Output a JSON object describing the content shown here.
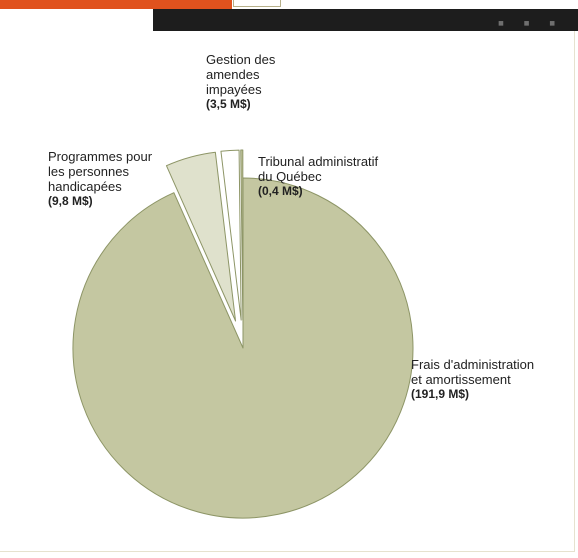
{
  "colors": {
    "accent": "#e0521e",
    "banner": "#1d1d1d",
    "slice_main": "#c4c7a1",
    "slice_light": "#dfe1cc",
    "slice_white": "#ffffff",
    "slice_stroke": "#8d9566"
  },
  "header": {
    "dots": "■ ■ ■"
  },
  "chart_data": {
    "type": "pie",
    "title": "",
    "slices": [
      {
        "name": "Frais d'administration et amortissement",
        "value": 191.9,
        "value_label": "(191,9 M$)",
        "exploded": false
      },
      {
        "name": "Programmes pour les personnes handicapées",
        "value": 9.8,
        "value_label": "(9,8 M$)",
        "exploded": true
      },
      {
        "name": "Gestion des amendes impayées",
        "value": 3.5,
        "value_label": "(3,5 M$)",
        "exploded": true
      },
      {
        "name": "Tribunal administratif du Québec",
        "value": 0.4,
        "value_label": "(0,4 M$)",
        "exploded": true
      }
    ],
    "labels": {
      "admin": {
        "line1": "Frais d'administration",
        "line2": "et amortissement",
        "value": "(191,9 M$)"
      },
      "programmes": {
        "line1": "Programmes pour",
        "line2": "les personnes",
        "line3": "handicapées",
        "value": "(9,8 M$)"
      },
      "amendes": {
        "line1": "Gestion des",
        "line2": "amendes",
        "line3": "impayées",
        "value": "(3,5 M$)"
      },
      "tribunal": {
        "line1": "Tribunal administratif",
        "line2": "du Québec",
        "value": "(0,4 M$)"
      }
    }
  }
}
